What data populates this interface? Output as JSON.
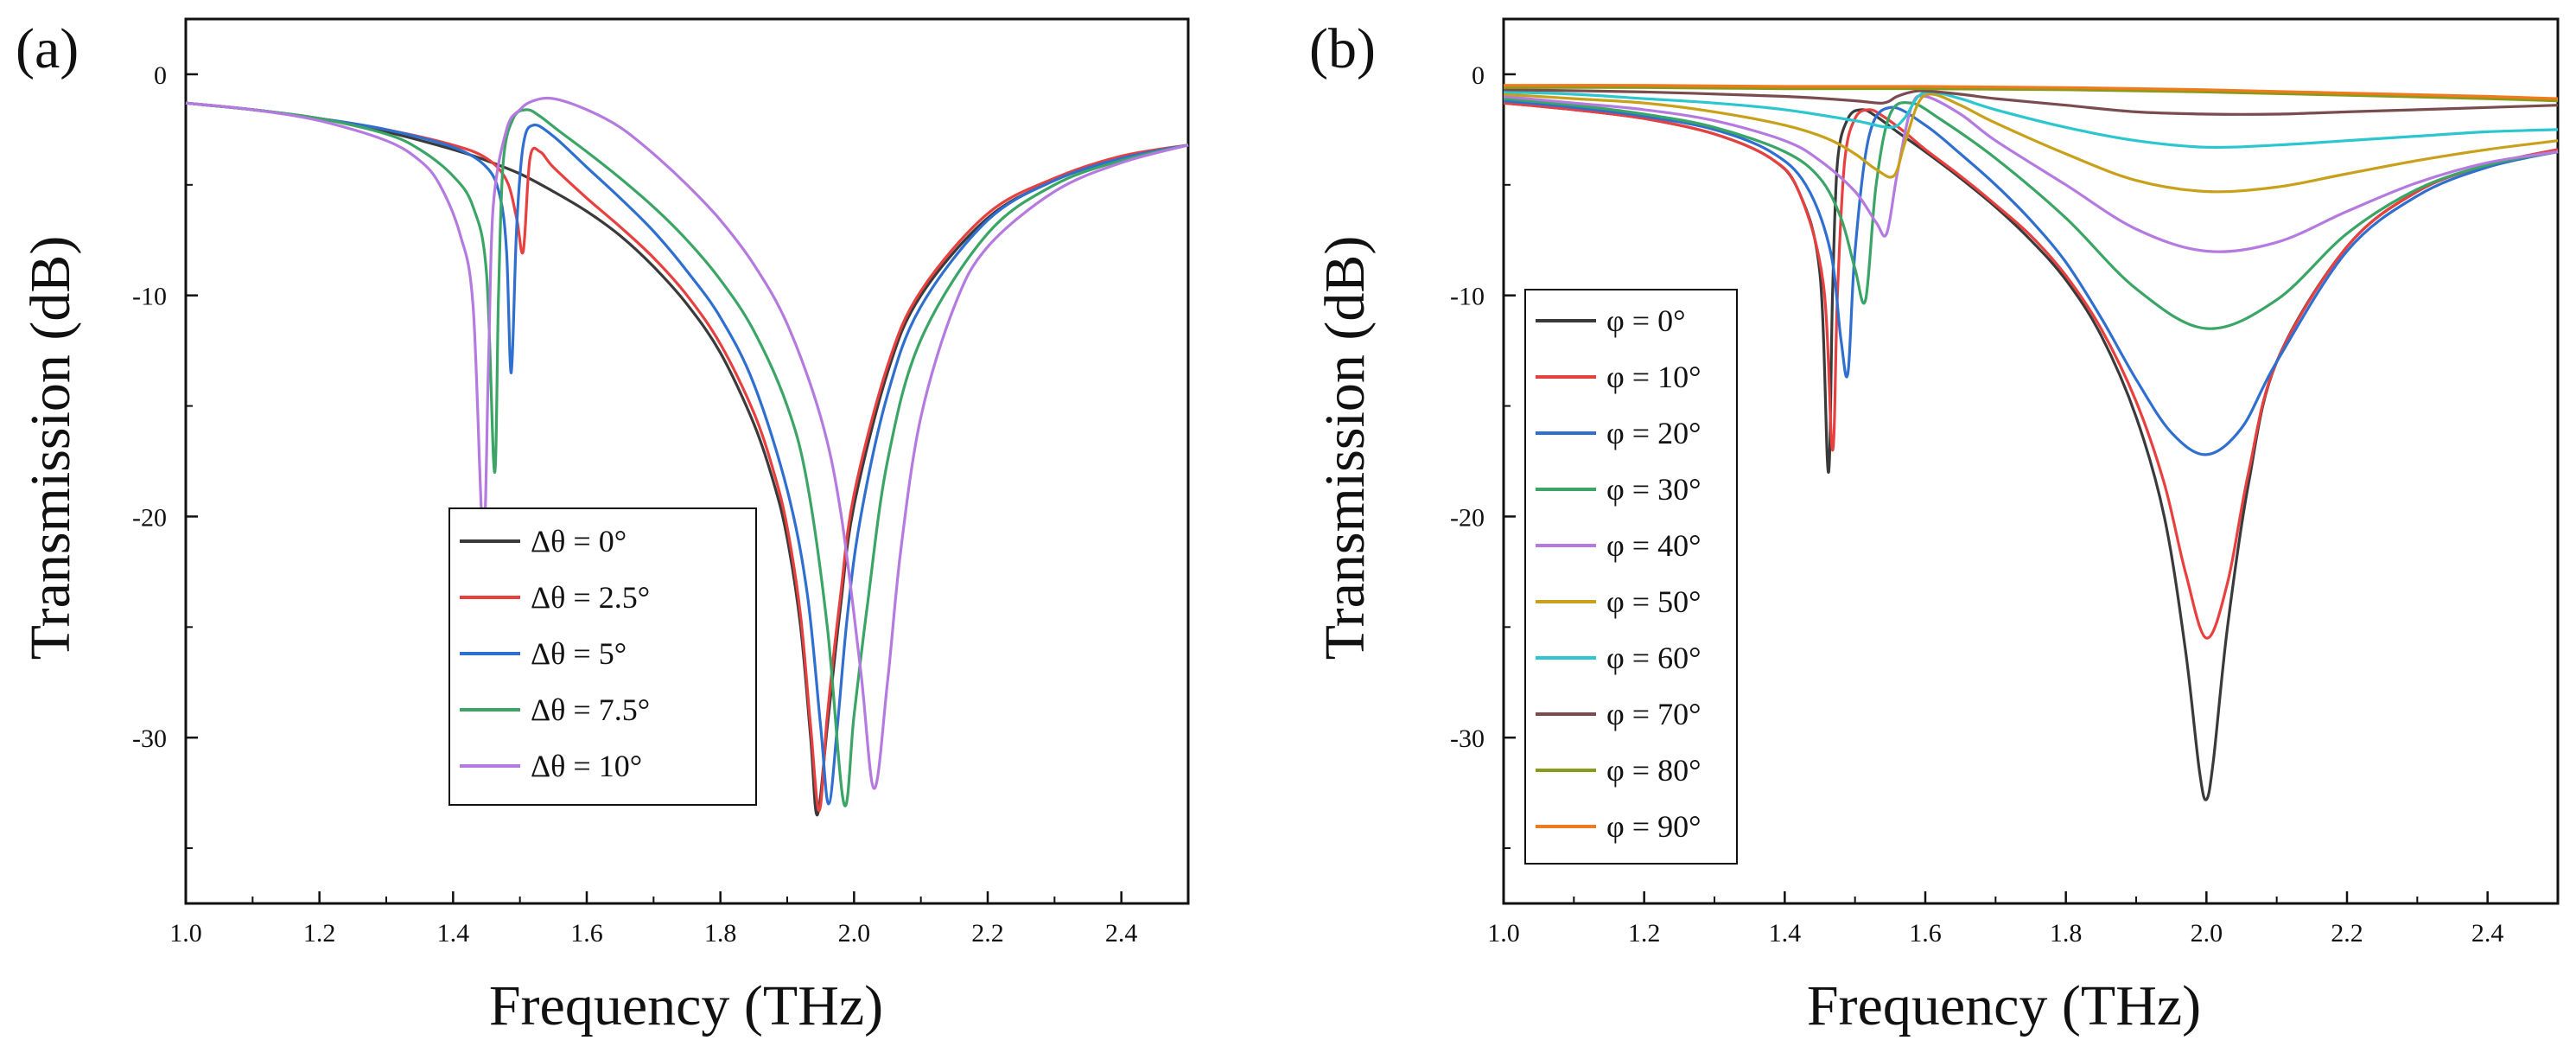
{
  "chart_data": [
    {
      "type": "line",
      "panel_label": "(a)",
      "title": "",
      "xlabel": "Frequency (THz)",
      "ylabel": "Transmission (dB)",
      "xlim": [
        1.0,
        2.5
      ],
      "ylim": [
        -37.5,
        2.5
      ],
      "xticks": [
        "1.0",
        "1.2",
        "1.4",
        "1.6",
        "1.8",
        "2.0",
        "2.2",
        "2.4"
      ],
      "xtick_values": [
        1.0,
        1.2,
        1.4,
        1.6,
        1.8,
        2.0,
        2.2,
        2.4
      ],
      "yticks": [
        "0",
        "-10",
        "-20",
        "-30"
      ],
      "ytick_values": [
        0,
        -10,
        -20,
        -30
      ],
      "legend_position": "lower-center",
      "series": [
        {
          "name": "Δθ = 0°",
          "color": "#3a3a3a",
          "x": [
            1.0,
            1.1,
            1.2,
            1.3,
            1.4,
            1.45,
            1.5,
            1.55,
            1.6,
            1.65,
            1.7,
            1.75,
            1.8,
            1.85,
            1.88,
            1.9,
            1.92,
            1.935,
            1.945,
            1.96,
            1.98,
            2.0,
            2.05,
            2.1,
            2.2,
            2.3,
            2.4,
            2.5
          ],
          "y": [
            -1.3,
            -1.6,
            -2.0,
            -2.6,
            -3.4,
            -3.9,
            -4.5,
            -5.3,
            -6.2,
            -7.3,
            -8.7,
            -10.4,
            -12.6,
            -15.8,
            -18.5,
            -21.0,
            -25.0,
            -30.0,
            -33.5,
            -29.5,
            -24.0,
            -19.5,
            -13.5,
            -10.0,
            -6.5,
            -4.8,
            -3.8,
            -3.2
          ]
        },
        {
          "name": "Δθ = 2.5°",
          "color": "#e8403f",
          "x": [
            1.0,
            1.1,
            1.2,
            1.3,
            1.4,
            1.45,
            1.48,
            1.495,
            1.505,
            1.515,
            1.53,
            1.55,
            1.6,
            1.65,
            1.7,
            1.75,
            1.8,
            1.85,
            1.88,
            1.9,
            1.92,
            1.935,
            1.948,
            1.96,
            1.98,
            2.0,
            2.05,
            2.1,
            2.2,
            2.3,
            2.4,
            2.5
          ],
          "y": [
            -1.3,
            -1.6,
            -2.0,
            -2.5,
            -3.2,
            -3.8,
            -4.8,
            -6.5,
            -8.0,
            -3.8,
            -3.5,
            -4.2,
            -5.6,
            -6.9,
            -8.3,
            -10.0,
            -12.2,
            -15.3,
            -18.0,
            -20.5,
            -24.5,
            -29.5,
            -33.3,
            -29.0,
            -23.5,
            -19.0,
            -13.2,
            -9.8,
            -6.3,
            -4.7,
            -3.7,
            -3.2
          ]
        },
        {
          "name": "Δθ = 5°",
          "color": "#2f6fd0",
          "x": [
            1.0,
            1.1,
            1.2,
            1.3,
            1.4,
            1.45,
            1.47,
            1.48,
            1.487,
            1.495,
            1.505,
            1.52,
            1.55,
            1.6,
            1.65,
            1.7,
            1.75,
            1.8,
            1.85,
            1.9,
            1.93,
            1.95,
            1.962,
            1.975,
            1.99,
            2.01,
            2.05,
            2.1,
            2.2,
            2.3,
            2.4,
            2.5
          ],
          "y": [
            -1.3,
            -1.6,
            -2.0,
            -2.5,
            -3.3,
            -4.2,
            -5.5,
            -8.0,
            -13.5,
            -7.0,
            -3.2,
            -2.3,
            -2.8,
            -4.2,
            -5.6,
            -7.1,
            -8.9,
            -11.0,
            -14.0,
            -18.8,
            -23.5,
            -29.5,
            -33.0,
            -29.5,
            -24.5,
            -20.0,
            -14.5,
            -10.5,
            -6.6,
            -4.8,
            -3.8,
            -3.2
          ]
        },
        {
          "name": "Δθ = 7.5°",
          "color": "#3aa565",
          "x": [
            1.0,
            1.1,
            1.2,
            1.3,
            1.35,
            1.4,
            1.43,
            1.45,
            1.462,
            1.468,
            1.475,
            1.49,
            1.51,
            1.53,
            1.56,
            1.6,
            1.65,
            1.7,
            1.75,
            1.8,
            1.85,
            1.9,
            1.93,
            1.96,
            1.985,
            2.0,
            2.02,
            2.05,
            2.1,
            2.2,
            2.3,
            2.4,
            2.5
          ],
          "y": [
            -1.3,
            -1.6,
            -2.0,
            -2.7,
            -3.4,
            -4.6,
            -6.0,
            -9.0,
            -18.0,
            -10.0,
            -4.0,
            -2.0,
            -1.6,
            -1.9,
            -2.6,
            -3.5,
            -4.7,
            -6.0,
            -7.5,
            -9.3,
            -11.6,
            -15.0,
            -18.5,
            -25.0,
            -33.0,
            -29.0,
            -24.0,
            -17.5,
            -12.0,
            -7.2,
            -5.0,
            -3.9,
            -3.2
          ]
        },
        {
          "name": "Δθ = 10°",
          "color": "#b57ae0",
          "x": [
            1.0,
            1.1,
            1.2,
            1.3,
            1.35,
            1.38,
            1.41,
            1.43,
            1.445,
            1.453,
            1.46,
            1.48,
            1.5,
            1.52,
            1.55,
            1.6,
            1.65,
            1.7,
            1.75,
            1.8,
            1.85,
            1.9,
            1.95,
            1.98,
            2.01,
            2.03,
            2.05,
            2.07,
            2.1,
            2.15,
            2.2,
            2.3,
            2.4,
            2.5
          ],
          "y": [
            -1.3,
            -1.6,
            -2.1,
            -3.0,
            -3.9,
            -5.0,
            -7.2,
            -10.5,
            -21.0,
            -13.0,
            -6.0,
            -2.5,
            -1.6,
            -1.2,
            -1.1,
            -1.6,
            -2.4,
            -3.6,
            -5.0,
            -6.6,
            -8.6,
            -11.3,
            -15.5,
            -19.8,
            -27.0,
            -32.3,
            -27.5,
            -21.5,
            -15.5,
            -10.5,
            -7.8,
            -5.3,
            -4.0,
            -3.2
          ]
        }
      ]
    },
    {
      "type": "line",
      "panel_label": "(b)",
      "title": "",
      "xlabel": "Frequency (THz)",
      "ylabel": "Transmission (dB)",
      "xlim": [
        1.0,
        2.5
      ],
      "ylim": [
        -37.5,
        2.5
      ],
      "xticks": [
        "1.0",
        "1.2",
        "1.4",
        "1.6",
        "1.8",
        "2.0",
        "2.2",
        "2.4"
      ],
      "xtick_values": [
        1.0,
        1.2,
        1.4,
        1.6,
        1.8,
        2.0,
        2.2,
        2.4
      ],
      "yticks": [
        "0",
        "-10",
        "-20",
        "-30"
      ],
      "ytick_values": [
        0,
        -10,
        -20,
        -30
      ],
      "legend_position": "left",
      "series": [
        {
          "name": "φ = 0°",
          "color": "#3a3a3a",
          "x": [
            1.0,
            1.1,
            1.2,
            1.3,
            1.38,
            1.42,
            1.45,
            1.462,
            1.468,
            1.475,
            1.49,
            1.51,
            1.53,
            1.56,
            1.6,
            1.65,
            1.7,
            1.75,
            1.8,
            1.85,
            1.9,
            1.94,
            1.97,
            1.99,
            2.0,
            2.01,
            2.03,
            2.06,
            2.1,
            2.2,
            2.3,
            2.4,
            2.5
          ],
          "y": [
            -1.3,
            -1.6,
            -2.0,
            -2.7,
            -3.8,
            -5.3,
            -9.0,
            -18.0,
            -10.0,
            -4.0,
            -2.0,
            -1.6,
            -1.9,
            -2.6,
            -3.5,
            -4.7,
            -6.0,
            -7.5,
            -9.3,
            -11.8,
            -15.5,
            -20.0,
            -26.0,
            -31.5,
            -32.8,
            -31.0,
            -25.0,
            -18.5,
            -13.0,
            -7.8,
            -5.3,
            -4.1,
            -3.4
          ]
        },
        {
          "name": "φ = 10°",
          "color": "#e8403f",
          "x": [
            1.0,
            1.1,
            1.2,
            1.3,
            1.38,
            1.42,
            1.455,
            1.468,
            1.475,
            1.485,
            1.5,
            1.52,
            1.54,
            1.57,
            1.6,
            1.65,
            1.7,
            1.75,
            1.8,
            1.85,
            1.9,
            1.94,
            1.97,
            2.0,
            2.03,
            2.06,
            2.1,
            2.2,
            2.3,
            2.4,
            2.5
          ],
          "y": [
            -1.3,
            -1.6,
            -2.0,
            -2.7,
            -3.8,
            -5.3,
            -9.5,
            -17.0,
            -10.0,
            -4.0,
            -2.0,
            -1.6,
            -1.9,
            -2.6,
            -3.4,
            -4.6,
            -5.9,
            -7.3,
            -9.1,
            -11.5,
            -14.8,
            -18.5,
            -22.5,
            -25.5,
            -23.0,
            -18.0,
            -13.0,
            -7.8,
            -5.3,
            -4.1,
            -3.4
          ]
        },
        {
          "name": "φ = 20°",
          "color": "#2f6fd0",
          "x": [
            1.0,
            1.1,
            1.2,
            1.3,
            1.38,
            1.43,
            1.465,
            1.48,
            1.49,
            1.5,
            1.52,
            1.55,
            1.6,
            1.65,
            1.7,
            1.75,
            1.8,
            1.85,
            1.9,
            1.95,
            2.0,
            2.05,
            2.1,
            2.2,
            2.3,
            2.4,
            2.5
          ],
          "y": [
            -1.2,
            -1.5,
            -1.9,
            -2.5,
            -3.5,
            -5.0,
            -8.0,
            -12.0,
            -13.5,
            -8.0,
            -2.8,
            -1.5,
            -2.3,
            -3.6,
            -5.0,
            -6.6,
            -8.5,
            -11.0,
            -13.8,
            -16.2,
            -17.2,
            -16.0,
            -13.0,
            -8.0,
            -5.5,
            -4.2,
            -3.5
          ]
        },
        {
          "name": "φ = 30°",
          "color": "#3aa565",
          "x": [
            1.0,
            1.1,
            1.2,
            1.3,
            1.4,
            1.45,
            1.48,
            1.5,
            1.515,
            1.53,
            1.55,
            1.58,
            1.62,
            1.7,
            1.8,
            1.9,
            2.0,
            2.1,
            2.2,
            2.3,
            2.4,
            2.5
          ],
          "y": [
            -1.1,
            -1.4,
            -1.8,
            -2.4,
            -3.5,
            -4.7,
            -6.5,
            -8.8,
            -10.2,
            -5.0,
            -1.8,
            -1.3,
            -2.0,
            -3.8,
            -6.5,
            -9.7,
            -11.5,
            -10.2,
            -7.2,
            -5.2,
            -4.1,
            -3.5
          ]
        },
        {
          "name": "φ = 40°",
          "color": "#b57ae0",
          "x": [
            1.0,
            1.1,
            1.2,
            1.3,
            1.4,
            1.45,
            1.5,
            1.53,
            1.545,
            1.56,
            1.58,
            1.6,
            1.65,
            1.7,
            1.8,
            1.9,
            2.0,
            2.1,
            2.2,
            2.3,
            2.4,
            2.5
          ],
          "y": [
            -1.0,
            -1.3,
            -1.6,
            -2.1,
            -3.0,
            -3.9,
            -5.3,
            -6.7,
            -7.2,
            -4.5,
            -1.5,
            -1.0,
            -1.8,
            -3.0,
            -5.0,
            -7.0,
            -8.0,
            -7.6,
            -6.2,
            -4.9,
            -4.0,
            -3.5
          ]
        },
        {
          "name": "φ = 50°",
          "color": "#c9a01a",
          "x": [
            1.0,
            1.1,
            1.2,
            1.3,
            1.4,
            1.46,
            1.5,
            1.53,
            1.555,
            1.57,
            1.59,
            1.61,
            1.65,
            1.7,
            1.8,
            1.9,
            2.0,
            2.1,
            2.2,
            2.3,
            2.4,
            2.5
          ],
          "y": [
            -0.9,
            -1.1,
            -1.3,
            -1.7,
            -2.3,
            -2.9,
            -3.6,
            -4.3,
            -4.6,
            -3.2,
            -1.3,
            -0.9,
            -1.4,
            -2.2,
            -3.6,
            -4.8,
            -5.3,
            -5.1,
            -4.5,
            -3.9,
            -3.4,
            -3.0
          ]
        },
        {
          "name": "φ = 60°",
          "color": "#2cc6cf",
          "x": [
            1.0,
            1.1,
            1.2,
            1.3,
            1.4,
            1.5,
            1.55,
            1.57,
            1.59,
            1.61,
            1.65,
            1.7,
            1.8,
            1.9,
            2.0,
            2.1,
            2.2,
            2.3,
            2.4,
            2.5
          ],
          "y": [
            -0.8,
            -0.9,
            -1.1,
            -1.3,
            -1.6,
            -2.1,
            -2.4,
            -2.0,
            -1.0,
            -0.8,
            -1.1,
            -1.6,
            -2.4,
            -3.0,
            -3.3,
            -3.2,
            -3.0,
            -2.8,
            -2.6,
            -2.5
          ]
        },
        {
          "name": "φ = 70°",
          "color": "#7a4b4f",
          "x": [
            1.0,
            1.2,
            1.4,
            1.5,
            1.54,
            1.56,
            1.58,
            1.6,
            1.65,
            1.7,
            1.8,
            1.9,
            2.0,
            2.1,
            2.2,
            2.3,
            2.4,
            2.5
          ],
          "y": [
            -0.7,
            -0.8,
            -1.0,
            -1.2,
            -1.3,
            -1.0,
            -0.8,
            -0.75,
            -0.9,
            -1.1,
            -1.4,
            -1.7,
            -1.8,
            -1.8,
            -1.7,
            -1.6,
            -1.5,
            -1.4
          ]
        },
        {
          "name": "φ = 80°",
          "color": "#8a9a1a",
          "x": [
            1.0,
            1.2,
            1.4,
            1.6,
            1.8,
            2.0,
            2.2,
            2.4,
            2.5
          ],
          "y": [
            -0.6,
            -0.6,
            -0.65,
            -0.65,
            -0.7,
            -0.8,
            -0.95,
            -1.1,
            -1.2
          ]
        },
        {
          "name": "φ = 90°",
          "color": "#f07a1e",
          "x": [
            1.0,
            1.2,
            1.4,
            1.6,
            1.8,
            2.0,
            2.2,
            2.4,
            2.5
          ],
          "y": [
            -0.5,
            -0.5,
            -0.55,
            -0.55,
            -0.6,
            -0.7,
            -0.85,
            -1.0,
            -1.1
          ]
        }
      ]
    }
  ]
}
